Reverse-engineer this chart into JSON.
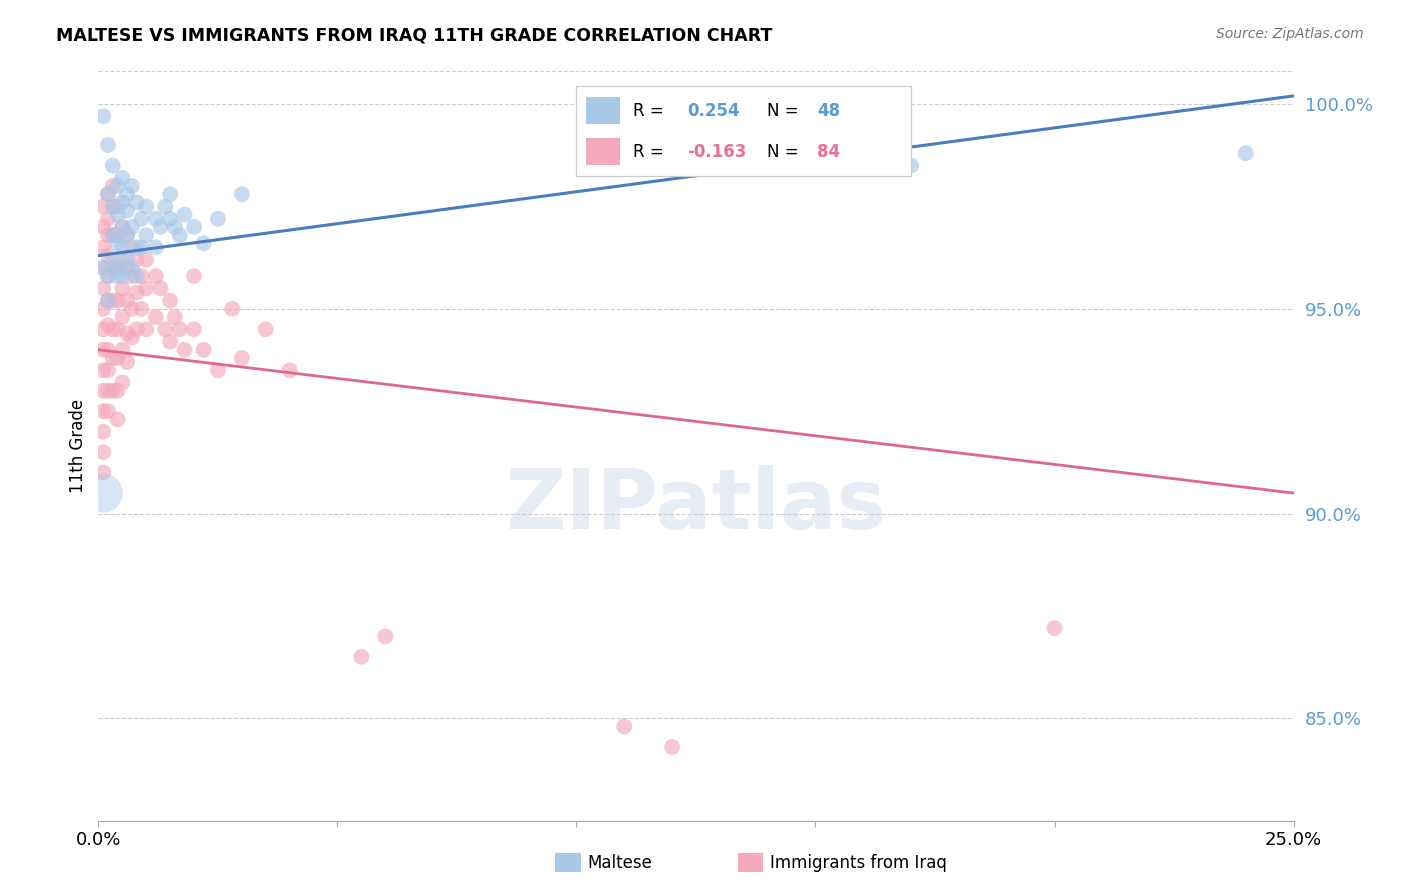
{
  "title": "MALTESE VS IMMIGRANTS FROM IRAQ 11TH GRADE CORRELATION CHART",
  "source": "Source: ZipAtlas.com",
  "ylabel": "11th Grade",
  "xlim": [
    0.0,
    0.25
  ],
  "ylim": [
    0.825,
    1.008
  ],
  "yticks": [
    0.85,
    0.9,
    0.95,
    1.0
  ],
  "ytick_labels": [
    "85.0%",
    "90.0%",
    "95.0%",
    "100.0%"
  ],
  "xticks": [
    0.0,
    0.05,
    0.1,
    0.15,
    0.2,
    0.25
  ],
  "xtick_labels": [
    "0.0%",
    "",
    "",
    "",
    "",
    "25.0%"
  ],
  "legend_R_blue": "0.254",
  "legend_N_blue": "48",
  "legend_R_pink": "-0.163",
  "legend_N_pink": "84",
  "blue_color": "#A8C8E8",
  "pink_color": "#F4A8BC",
  "blue_line_color": "#4A7CC0",
  "pink_line_color": "#E06888",
  "blue_text_color": "#5B9BD5",
  "pink_text_color": "#E87090",
  "watermark": "ZIPatlas",
  "blue_line_x": [
    0.0,
    0.25
  ],
  "blue_line_y": [
    0.963,
    1.002
  ],
  "pink_line_x": [
    0.0,
    0.25
  ],
  "pink_line_y": [
    0.94,
    0.905
  ],
  "blue_scatter": [
    [
      0.001,
      0.997
    ],
    [
      0.002,
      0.99
    ],
    [
      0.003,
      0.985
    ],
    [
      0.002,
      0.978
    ],
    [
      0.003,
      0.975
    ],
    [
      0.004,
      0.98
    ],
    [
      0.004,
      0.973
    ],
    [
      0.005,
      0.982
    ],
    [
      0.005,
      0.976
    ],
    [
      0.005,
      0.97
    ],
    [
      0.006,
      0.978
    ],
    [
      0.006,
      0.974
    ],
    [
      0.007,
      0.98
    ],
    [
      0.008,
      0.976
    ],
    [
      0.009,
      0.972
    ],
    [
      0.003,
      0.968
    ],
    [
      0.004,
      0.966
    ],
    [
      0.005,
      0.965
    ],
    [
      0.006,
      0.968
    ],
    [
      0.007,
      0.97
    ],
    [
      0.008,
      0.965
    ],
    [
      0.004,
      0.96
    ],
    [
      0.005,
      0.958
    ],
    [
      0.006,
      0.962
    ],
    [
      0.007,
      0.96
    ],
    [
      0.008,
      0.958
    ],
    [
      0.009,
      0.965
    ],
    [
      0.01,
      0.975
    ],
    [
      0.01,
      0.968
    ],
    [
      0.012,
      0.972
    ],
    [
      0.012,
      0.965
    ],
    [
      0.013,
      0.97
    ],
    [
      0.014,
      0.975
    ],
    [
      0.015,
      0.978
    ],
    [
      0.015,
      0.972
    ],
    [
      0.016,
      0.97
    ],
    [
      0.017,
      0.968
    ],
    [
      0.018,
      0.973
    ],
    [
      0.02,
      0.97
    ],
    [
      0.022,
      0.966
    ],
    [
      0.025,
      0.972
    ],
    [
      0.03,
      0.978
    ],
    [
      0.001,
      0.96
    ],
    [
      0.002,
      0.958
    ],
    [
      0.002,
      0.952
    ],
    [
      0.003,
      0.962
    ],
    [
      0.004,
      0.958
    ],
    [
      0.17,
      0.985
    ],
    [
      0.24,
      0.988
    ]
  ],
  "pink_scatter": [
    [
      0.001,
      0.975
    ],
    [
      0.001,
      0.97
    ],
    [
      0.001,
      0.965
    ],
    [
      0.001,
      0.96
    ],
    [
      0.001,
      0.955
    ],
    [
      0.001,
      0.95
    ],
    [
      0.001,
      0.945
    ],
    [
      0.001,
      0.94
    ],
    [
      0.001,
      0.935
    ],
    [
      0.001,
      0.93
    ],
    [
      0.001,
      0.925
    ],
    [
      0.001,
      0.92
    ],
    [
      0.001,
      0.915
    ],
    [
      0.001,
      0.91
    ],
    [
      0.002,
      0.978
    ],
    [
      0.002,
      0.972
    ],
    [
      0.002,
      0.968
    ],
    [
      0.002,
      0.963
    ],
    [
      0.002,
      0.958
    ],
    [
      0.002,
      0.952
    ],
    [
      0.002,
      0.946
    ],
    [
      0.002,
      0.94
    ],
    [
      0.002,
      0.935
    ],
    [
      0.002,
      0.93
    ],
    [
      0.002,
      0.925
    ],
    [
      0.003,
      0.98
    ],
    [
      0.003,
      0.975
    ],
    [
      0.003,
      0.968
    ],
    [
      0.003,
      0.96
    ],
    [
      0.003,
      0.952
    ],
    [
      0.003,
      0.945
    ],
    [
      0.003,
      0.938
    ],
    [
      0.003,
      0.93
    ],
    [
      0.004,
      0.975
    ],
    [
      0.004,
      0.968
    ],
    [
      0.004,
      0.96
    ],
    [
      0.004,
      0.952
    ],
    [
      0.004,
      0.945
    ],
    [
      0.004,
      0.938
    ],
    [
      0.004,
      0.93
    ],
    [
      0.004,
      0.923
    ],
    [
      0.005,
      0.97
    ],
    [
      0.005,
      0.962
    ],
    [
      0.005,
      0.955
    ],
    [
      0.005,
      0.948
    ],
    [
      0.005,
      0.94
    ],
    [
      0.005,
      0.932
    ],
    [
      0.006,
      0.968
    ],
    [
      0.006,
      0.96
    ],
    [
      0.006,
      0.952
    ],
    [
      0.006,
      0.944
    ],
    [
      0.006,
      0.937
    ],
    [
      0.007,
      0.965
    ],
    [
      0.007,
      0.958
    ],
    [
      0.007,
      0.95
    ],
    [
      0.007,
      0.943
    ],
    [
      0.008,
      0.962
    ],
    [
      0.008,
      0.954
    ],
    [
      0.008,
      0.945
    ],
    [
      0.009,
      0.958
    ],
    [
      0.009,
      0.95
    ],
    [
      0.01,
      0.962
    ],
    [
      0.01,
      0.955
    ],
    [
      0.01,
      0.945
    ],
    [
      0.012,
      0.958
    ],
    [
      0.012,
      0.948
    ],
    [
      0.013,
      0.955
    ],
    [
      0.014,
      0.945
    ],
    [
      0.015,
      0.952
    ],
    [
      0.015,
      0.942
    ],
    [
      0.016,
      0.948
    ],
    [
      0.017,
      0.945
    ],
    [
      0.018,
      0.94
    ],
    [
      0.02,
      0.958
    ],
    [
      0.02,
      0.945
    ],
    [
      0.022,
      0.94
    ],
    [
      0.025,
      0.935
    ],
    [
      0.028,
      0.95
    ],
    [
      0.03,
      0.938
    ],
    [
      0.035,
      0.945
    ],
    [
      0.04,
      0.935
    ],
    [
      0.055,
      0.865
    ],
    [
      0.06,
      0.87
    ],
    [
      0.11,
      0.848
    ],
    [
      0.12,
      0.843
    ],
    [
      0.2,
      0.872
    ]
  ],
  "big_blue_dot": [
    0.001,
    0.905
  ],
  "big_blue_dot_size": 800
}
